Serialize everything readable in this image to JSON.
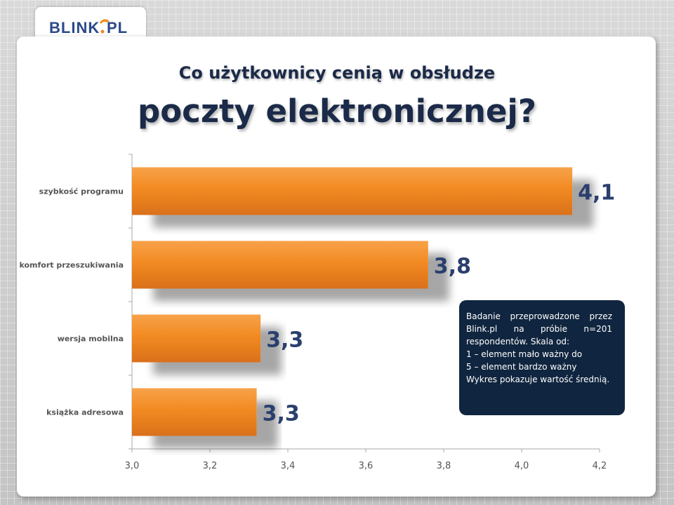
{
  "logo": {
    "text": "BLINK.PL"
  },
  "title_line1": "Co użytkownicy cenią w obsłudze",
  "title_line2": "poczty elektronicznej?",
  "note": {
    "para1": "Badanie przeprowadzone przez Blink.pl na próbie n=201 respondentów. Skala od:",
    "line2": "1 – element mało ważny do",
    "line3": "5 – element bardzo ważny",
    "line4": "Wykres pokazuje wartość średnią."
  },
  "chart_data": {
    "type": "bar",
    "orientation": "horizontal",
    "categories": [
      "szybkość programu",
      "komfort przeszukiwania",
      "wersja mobilna",
      "książka adresowa"
    ],
    "values": [
      4.13,
      3.76,
      3.33,
      3.32
    ],
    "data_labels": [
      "4,1",
      "3,8",
      "3,3",
      "3,3"
    ],
    "xlim": [
      3.0,
      4.2
    ],
    "xticks": [
      "3,0",
      "3,2",
      "3,4",
      "3,6",
      "3,8",
      "4,0",
      "4,2"
    ],
    "xtick_values": [
      3.0,
      3.2,
      3.4,
      3.6,
      3.8,
      4.0,
      4.2
    ],
    "bar_color": "#f28a22",
    "label_color": "#2a3f6e",
    "grid": false
  }
}
